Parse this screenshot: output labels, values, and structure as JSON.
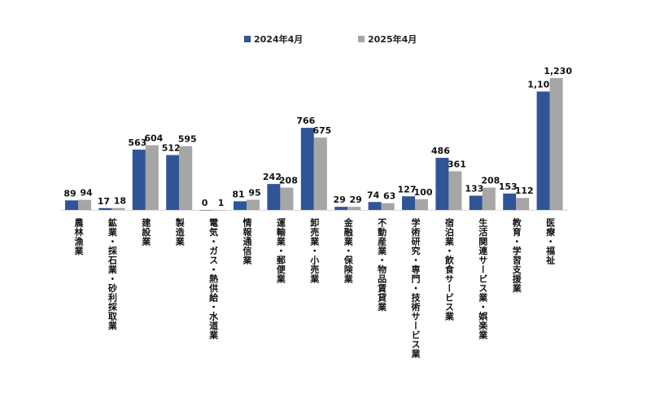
{
  "chart_data": {
    "type": "bar",
    "title": "",
    "xlabel": "",
    "ylabel": "",
    "ylim": [
      0,
      1230
    ],
    "grid": false,
    "legend_position": "top-center",
    "categories": [
      "農林漁業",
      "鉱業・採石業・砂利採取業",
      "建設業",
      "製造業",
      "電気・ガス・熱供給・水道業",
      "情報通信業",
      "運輸業・郵便業",
      "卸売業・小売業",
      "金融業・保険業",
      "不動産業・物品賃貸業",
      "学術研究・専門・技術サービス業",
      "宿泊業・飲食サービス業",
      "生活関連サービス業・娯楽業",
      "教育・学習支援業",
      "医療・福祉"
    ],
    "series": [
      {
        "name": "2024年4月",
        "color": "#2F5597",
        "values": [
          89,
          17,
          563,
          512,
          0,
          81,
          242,
          766,
          29,
          74,
          127,
          486,
          133,
          153,
          1105
        ]
      },
      {
        "name": "2025年4月",
        "color": "#A6A6A6",
        "values": [
          94,
          18,
          604,
          595,
          1,
          95,
          208,
          675,
          29,
          63,
          100,
          361,
          208,
          112,
          1230
        ]
      }
    ]
  }
}
